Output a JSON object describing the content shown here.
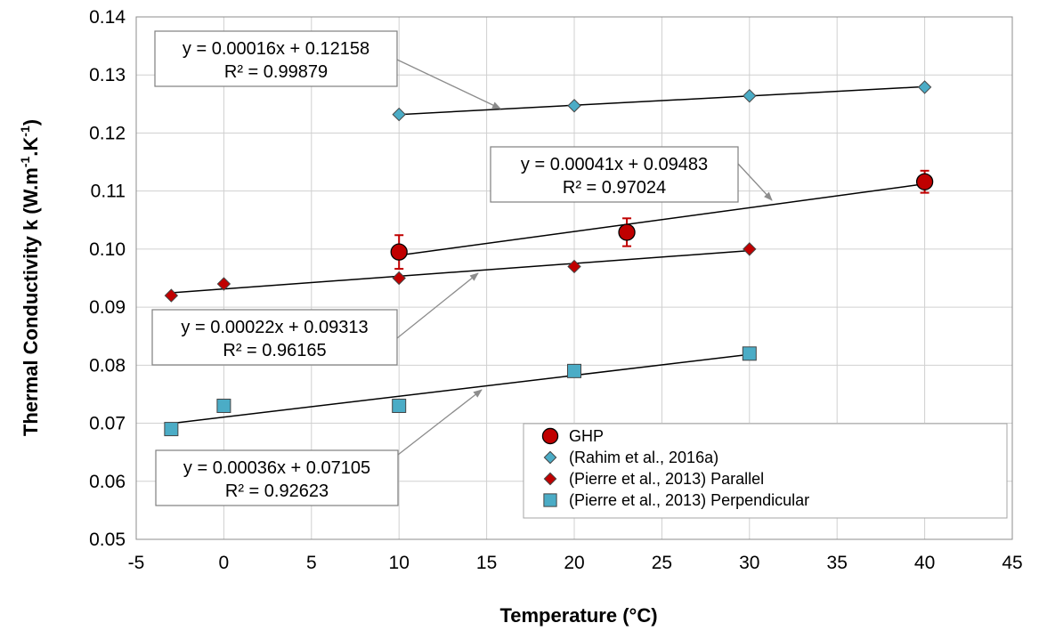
{
  "chart_data": {
    "type": "scatter",
    "xlabel": "Temperature (°C)",
    "ylabel": {
      "main": "Thermal Conductivity k (W.m",
      "sup1": "-1",
      "mid": ".K",
      "sup2": "-1",
      "end": ")"
    },
    "xlim": [
      -5,
      45
    ],
    "ylim": [
      0.05,
      0.14
    ],
    "xticks": [
      "-5",
      "0",
      "5",
      "10",
      "15",
      "20",
      "25",
      "30",
      "35",
      "40",
      "45"
    ],
    "yticks": [
      "0.05",
      "0.06",
      "0.07",
      "0.08",
      "0.09",
      "0.10",
      "0.11",
      "0.12",
      "0.13",
      "0.14"
    ],
    "grid": true,
    "legend_position": "bottom-right",
    "series": [
      {
        "name": "GHP",
        "marker": "circle",
        "color": "#c00000",
        "points": [
          [
            10,
            0.0995
          ],
          [
            23,
            0.1029
          ],
          [
            40,
            0.1116
          ]
        ],
        "errors": [
          0.0029,
          0.0024,
          0.0019
        ],
        "fit": {
          "slope": 0.00041,
          "intercept": 0.09483,
          "x_range": [
            10,
            40
          ]
        },
        "equation": "y = 0.00041x + 0.09483",
        "r2": "R² = 0.97024"
      },
      {
        "name": "(Rahim et al., 2016a)",
        "marker": "diamond",
        "color": "#4bacc6",
        "points": [
          [
            10,
            0.1232
          ],
          [
            20,
            0.1247
          ],
          [
            30,
            0.1264
          ],
          [
            40,
            0.1279
          ]
        ],
        "fit": {
          "slope": 0.00016,
          "intercept": 0.12158,
          "x_range": [
            10,
            40
          ]
        },
        "equation": "y = 0.00016x + 0.12158",
        "r2": "R² = 0.99879"
      },
      {
        "name": "(Pierre et al., 2013) Parallel",
        "marker": "diamond",
        "color": "#c00000",
        "points": [
          [
            -3,
            0.092
          ],
          [
            0,
            0.094
          ],
          [
            10,
            0.095
          ],
          [
            20,
            0.097
          ],
          [
            30,
            0.1
          ]
        ],
        "fit": {
          "slope": 0.00022,
          "intercept": 0.09313,
          "x_range": [
            -3,
            30
          ]
        },
        "equation": "y = 0.00022x + 0.09313",
        "r2": "R² = 0.96165"
      },
      {
        "name": "(Pierre et al., 2013) Perpendicular",
        "marker": "square",
        "color": "#4bacc6",
        "points": [
          [
            -3,
            0.069
          ],
          [
            0,
            0.073
          ],
          [
            10,
            0.073
          ],
          [
            20,
            0.079
          ],
          [
            30,
            0.082
          ]
        ],
        "fit": {
          "slope": 0.00036,
          "intercept": 0.07105,
          "x_range": [
            -3,
            30
          ]
        },
        "equation": "y = 0.00036x + 0.07105",
        "r2": "R² = 0.92623"
      }
    ]
  }
}
